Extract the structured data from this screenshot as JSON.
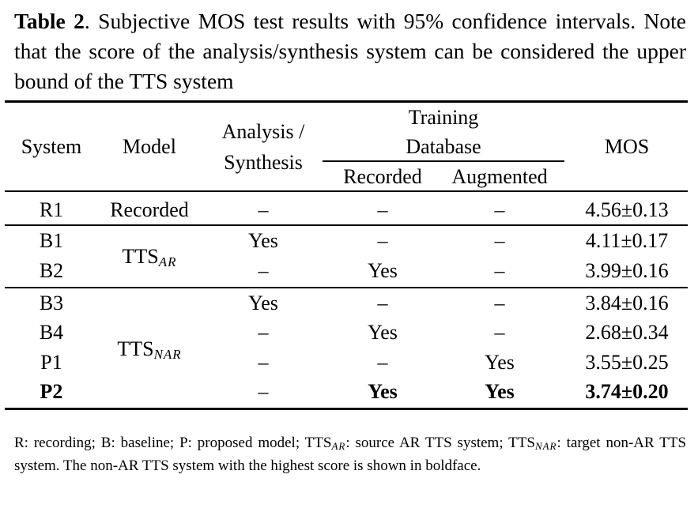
{
  "caption": {
    "label": "Table 2",
    "text": ". Subjective MOS test results with 95% confidence intervals. Note that the score of the analysis/synthesis system can be considered the upper bound of the TTS system"
  },
  "table": {
    "headers": {
      "system": "System",
      "model": "Model",
      "analysis_line1": "Analysis /",
      "analysis_line2": "Synthesis",
      "training_line1": "Training",
      "training_line2": "Database",
      "recorded": "Recorded",
      "augmented": "Augmented",
      "mos": "MOS"
    },
    "models": {
      "recorded": "Recorded",
      "tts_ar_base": "TTS",
      "tts_ar_sub": "AR",
      "tts_nar_base": "TTS",
      "tts_nar_sub": "NAR"
    },
    "rows": [
      {
        "system": "R1",
        "analysis": "–",
        "recorded": "–",
        "augmented": "–",
        "mos": "4.56±0.13"
      },
      {
        "system": "B1",
        "analysis": "Yes",
        "recorded": "–",
        "augmented": "–",
        "mos": "4.11±0.17"
      },
      {
        "system": "B2",
        "analysis": "–",
        "recorded": "Yes",
        "augmented": "–",
        "mos": "3.99±0.16"
      },
      {
        "system": "B3",
        "analysis": "Yes",
        "recorded": "–",
        "augmented": "–",
        "mos": "3.84±0.16"
      },
      {
        "system": "B4",
        "analysis": "–",
        "recorded": "Yes",
        "augmented": "–",
        "mos": "2.68±0.34"
      },
      {
        "system": "P1",
        "analysis": "–",
        "recorded": "–",
        "augmented": "Yes",
        "mos": "3.55±0.25"
      },
      {
        "system": "P2",
        "analysis": "–",
        "recorded": "Yes",
        "augmented": "Yes",
        "mos": "3.74±0.20"
      }
    ]
  },
  "notes": {
    "p1": "R: recording; B: baseline; P: proposed model; TTS",
    "sub1": "AR",
    "p2": ": source AR TTS system; TTS",
    "sub2": "NAR",
    "p3": ": target non-AR TTS system. The non-AR TTS system with the highest score is shown in boldface."
  }
}
